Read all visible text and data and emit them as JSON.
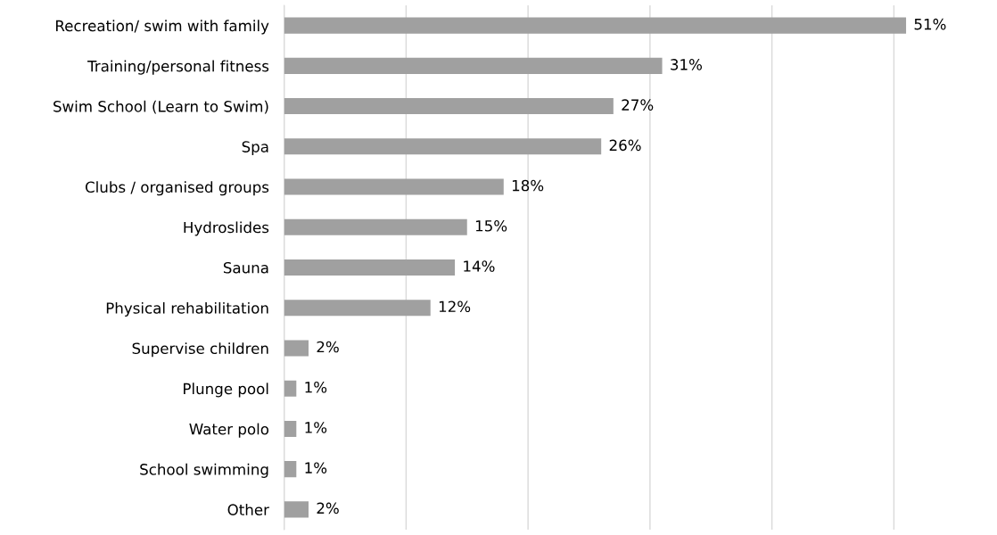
{
  "chart_data": {
    "type": "bar",
    "orientation": "horizontal",
    "categories": [
      "Recreation/ swim with family",
      "Training/personal fitness",
      "Swim School (Learn to Swim)",
      "Spa",
      "Clubs / organised groups",
      "Hydroslides",
      "Sauna",
      "Physical rehabilitation",
      "Supervise children",
      "Plunge pool",
      "Water polo",
      "School swimming",
      "Other"
    ],
    "values": [
      51,
      31,
      27,
      26,
      18,
      15,
      14,
      12,
      2,
      1,
      1,
      1,
      2
    ],
    "value_labels": [
      "51%",
      "31%",
      "27%",
      "26%",
      "18%",
      "15%",
      "14%",
      "12%",
      "2%",
      "1%",
      "1%",
      "1%",
      "2%"
    ],
    "color": "#a0a0a0",
    "xticks": [
      {
        "value": 0,
        "label": null
      },
      {
        "value": 10,
        "label": null
      },
      {
        "value": 20,
        "label": null
      },
      {
        "value": 30,
        "label": null
      },
      {
        "value": 40,
        "label": null
      },
      {
        "value": 50,
        "label": null
      }
    ],
    "grid": "x",
    "tick_labels": "y"
  }
}
